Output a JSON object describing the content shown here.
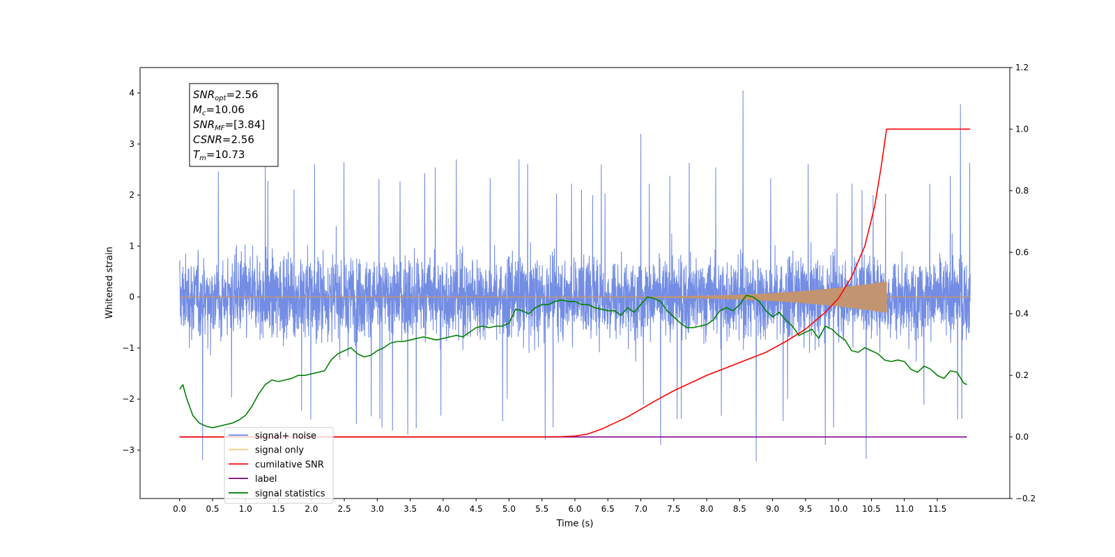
{
  "chart_data": {
    "type": "line",
    "title": "",
    "xlabel": "Time (s)",
    "ylabel": "Whitened strain",
    "xlim": [
      -0.6,
      12.6
    ],
    "ylim": [
      -3.95,
      4.5
    ],
    "y2lim": [
      -0.2,
      1.2
    ],
    "x_ticks": [
      "0.0",
      "0.5",
      "1.0",
      "1.5",
      "2.0",
      "2.5",
      "3.0",
      "3.5",
      "4.0",
      "4.5",
      "5.0",
      "5.5",
      "6.0",
      "6.5",
      "7.0",
      "7.5",
      "8.0",
      "8.5",
      "9.0",
      "9.5",
      "10.0",
      "10.5",
      "11.0",
      "11.5"
    ],
    "y_ticks": [
      "4",
      "3",
      "2",
      "1",
      "0",
      "−1",
      "−2",
      "−3"
    ],
    "y2_ticks": [
      "1.2",
      "1.0",
      "0.8",
      "0.6",
      "0.4",
      "0.2",
      "0.0",
      "−0.2"
    ],
    "info_box": [
      {
        "var": "SNR",
        "sub": "opt",
        "text": "=2.56"
      },
      {
        "var": "M",
        "sub": "c",
        "text": "=10.06"
      },
      {
        "var": "SNR",
        "sub": "MF",
        "text": "=[3.84]"
      },
      {
        "var": "CSNR",
        "sub": "",
        "text": "=2.56"
      },
      {
        "var": "T",
        "sub": "m",
        "text": "=10.73"
      }
    ],
    "legend": {
      "placement": "lower-left",
      "items": [
        {
          "label": "signal+ noise",
          "color": "#6b87e3"
        },
        {
          "label": "signal only",
          "color": "#ffcc80"
        },
        {
          "label": "cumilative SNR",
          "color": "#ff0000"
        },
        {
          "label": "label",
          "color": "#800080"
        },
        {
          "label": "signal statistics",
          "color": "#008000"
        }
      ]
    },
    "series": [
      {
        "name": "signal+ noise",
        "axis": "left",
        "color": "#6b87e3",
        "t_range": [
          0.0,
          12.0
        ],
        "envelope_typical": 1.7,
        "peaks": [
          [
            0.35,
            -3.2
          ],
          [
            1.3,
            2.7
          ],
          [
            2.05,
            2.6
          ],
          [
            4.2,
            2.7
          ],
          [
            5.15,
            2.7
          ],
          [
            5.55,
            -2.8
          ],
          [
            6.4,
            2.6
          ],
          [
            7.0,
            3.2
          ],
          [
            7.3,
            -2.9
          ],
          [
            8.55,
            4.05
          ],
          [
            8.75,
            -3.22
          ],
          [
            9.8,
            -2.9
          ],
          [
            10.42,
            -3.17
          ],
          [
            11.85,
            3.78
          ]
        ]
      },
      {
        "name": "signal only",
        "axis": "left",
        "color": "#ffcc80",
        "fill": "#c29570",
        "t_range": [
          0.0,
          12.0
        ],
        "chirp_end": 10.73,
        "peak_amplitude": 0.3
      },
      {
        "name": "cumilative SNR",
        "axis": "right",
        "color": "#ff0000",
        "x": [
          0.0,
          5.5,
          5.8,
          6.0,
          6.2,
          6.4,
          6.6,
          6.8,
          7.0,
          7.2,
          7.5,
          7.8,
          8.0,
          8.3,
          8.6,
          8.9,
          9.2,
          9.5,
          9.8,
          10.0,
          10.2,
          10.4,
          10.55,
          10.65,
          10.73,
          12.0
        ],
        "y": [
          0.0,
          0.0,
          0.001,
          0.003,
          0.01,
          0.025,
          0.045,
          0.065,
          0.09,
          0.115,
          0.15,
          0.18,
          0.2,
          0.225,
          0.25,
          0.275,
          0.31,
          0.35,
          0.405,
          0.45,
          0.52,
          0.62,
          0.75,
          0.88,
          1.0,
          1.0
        ]
      },
      {
        "name": "label",
        "axis": "right",
        "color": "#800080",
        "x": [
          0.0,
          11.95
        ],
        "y": [
          0.0,
          0.0
        ]
      },
      {
        "name": "signal statistics",
        "axis": "right",
        "color": "#008000",
        "x": [
          0.0,
          0.05,
          0.1,
          0.2,
          0.3,
          0.4,
          0.5,
          0.6,
          0.7,
          0.8,
          0.9,
          1.0,
          1.1,
          1.2,
          1.3,
          1.4,
          1.5,
          1.6,
          1.7,
          1.8,
          1.9,
          2.0,
          2.1,
          2.2,
          2.3,
          2.4,
          2.5,
          2.6,
          2.7,
          2.8,
          2.9,
          3.0,
          3.1,
          3.2,
          3.3,
          3.4,
          3.5,
          3.6,
          3.7,
          3.8,
          3.9,
          4.0,
          4.1,
          4.2,
          4.3,
          4.4,
          4.5,
          4.6,
          4.7,
          4.8,
          4.9,
          5.0,
          5.1,
          5.2,
          5.3,
          5.4,
          5.5,
          5.6,
          5.7,
          5.8,
          5.9,
          6.0,
          6.1,
          6.2,
          6.3,
          6.4,
          6.5,
          6.6,
          6.7,
          6.8,
          6.9,
          7.0,
          7.1,
          7.2,
          7.3,
          7.4,
          7.5,
          7.6,
          7.7,
          7.8,
          7.9,
          8.0,
          8.1,
          8.2,
          8.3,
          8.4,
          8.5,
          8.6,
          8.7,
          8.8,
          8.9,
          9.0,
          9.1,
          9.2,
          9.3,
          9.4,
          9.5,
          9.6,
          9.7,
          9.8,
          9.9,
          10.0,
          10.1,
          10.2,
          10.3,
          10.4,
          10.5,
          10.6,
          10.7,
          10.8,
          10.9,
          11.0,
          11.1,
          11.2,
          11.3,
          11.4,
          11.5,
          11.6,
          11.7,
          11.8,
          11.9,
          11.95
        ],
        "y": [
          0.155,
          0.17,
          0.13,
          0.07,
          0.045,
          0.035,
          0.03,
          0.035,
          0.04,
          0.045,
          0.055,
          0.07,
          0.1,
          0.14,
          0.17,
          0.185,
          0.18,
          0.185,
          0.19,
          0.2,
          0.2,
          0.205,
          0.21,
          0.215,
          0.25,
          0.27,
          0.28,
          0.29,
          0.27,
          0.26,
          0.265,
          0.28,
          0.29,
          0.305,
          0.31,
          0.31,
          0.315,
          0.32,
          0.325,
          0.32,
          0.315,
          0.32,
          0.325,
          0.33,
          0.325,
          0.34,
          0.355,
          0.36,
          0.355,
          0.36,
          0.36,
          0.37,
          0.415,
          0.41,
          0.4,
          0.42,
          0.43,
          0.43,
          0.44,
          0.445,
          0.44,
          0.44,
          0.43,
          0.43,
          0.42,
          0.415,
          0.41,
          0.41,
          0.395,
          0.42,
          0.405,
          0.43,
          0.455,
          0.45,
          0.44,
          0.41,
          0.39,
          0.37,
          0.355,
          0.355,
          0.36,
          0.365,
          0.38,
          0.41,
          0.42,
          0.41,
          0.43,
          0.46,
          0.455,
          0.44,
          0.41,
          0.39,
          0.405,
          0.38,
          0.36,
          0.33,
          0.34,
          0.35,
          0.32,
          0.36,
          0.35,
          0.33,
          0.315,
          0.28,
          0.275,
          0.29,
          0.28,
          0.27,
          0.25,
          0.245,
          0.25,
          0.245,
          0.22,
          0.21,
          0.23,
          0.22,
          0.2,
          0.19,
          0.215,
          0.21,
          0.175,
          0.17
        ]
      }
    ]
  }
}
